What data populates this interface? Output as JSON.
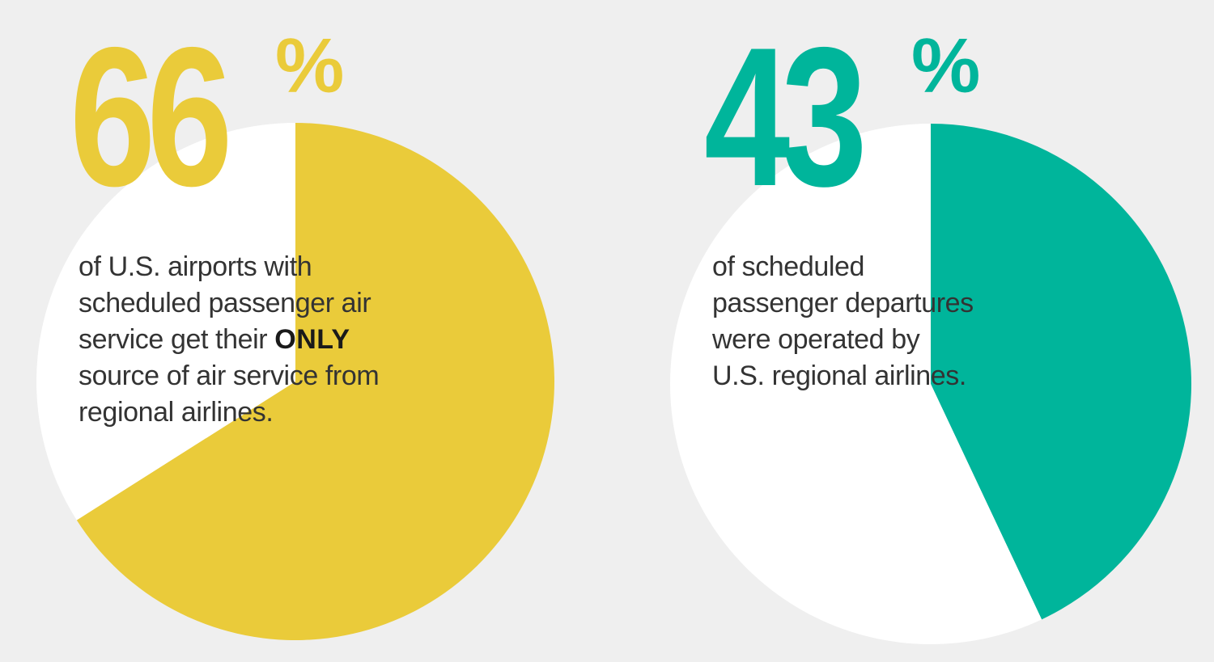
{
  "colors": {
    "background": "#efefef",
    "left_accent": "#eacb3a",
    "right_accent": "#00b59b",
    "pie_remainder": "#ffffff",
    "text": "#333333"
  },
  "stats": [
    {
      "number": "66",
      "percent_sign": "%",
      "caption_lines": [
        "of U.S. airports with",
        "scheduled passenger air"
      ],
      "caption_line3_prefix": "service get their ",
      "caption_line3_emphasis": "ONLY",
      "caption_lines_tail": [
        "source of air service from",
        "regional airlines."
      ]
    },
    {
      "number": "43",
      "percent_sign": "%",
      "caption_lines": [
        "of scheduled",
        "passenger departures",
        "were operated by",
        "U.S. regional airlines."
      ]
    }
  ],
  "chart_data": [
    {
      "type": "pie",
      "start_angle_deg": 0,
      "direction": "clockwise",
      "values": [
        66,
        34
      ],
      "colors": [
        "#eacb3a",
        "#ffffff"
      ]
    },
    {
      "type": "pie",
      "start_angle_deg": 0,
      "direction": "clockwise",
      "values": [
        43,
        57
      ],
      "colors": [
        "#00b59b",
        "#ffffff"
      ]
    }
  ]
}
